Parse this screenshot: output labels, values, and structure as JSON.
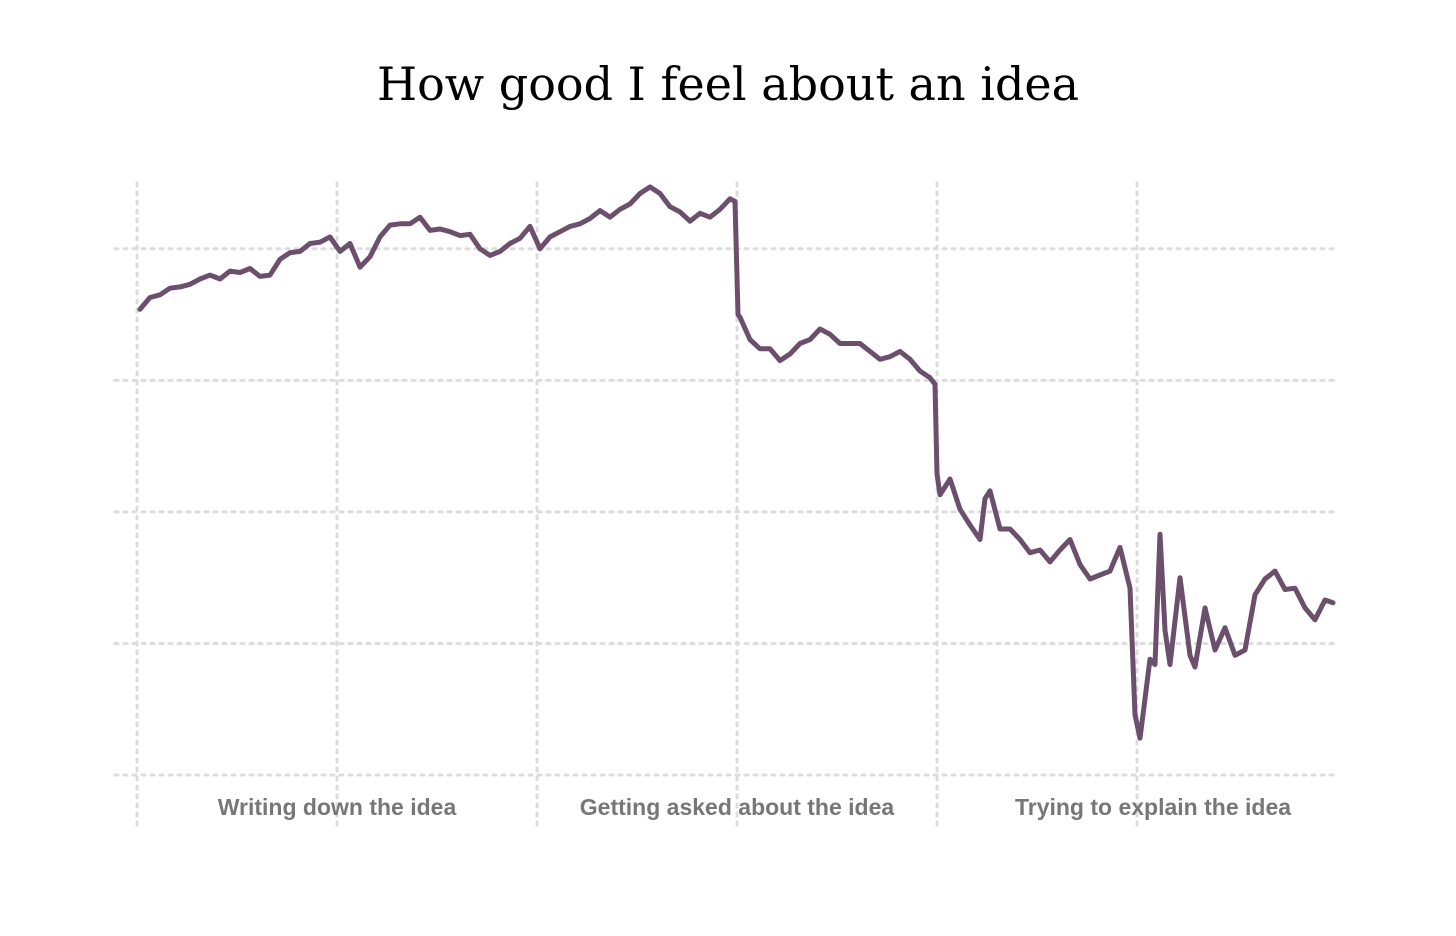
{
  "chart_data": {
    "type": "line",
    "title": "How good I feel about an idea",
    "x_labels": [
      {
        "value": 1,
        "label": "Writing down the idea"
      },
      {
        "value": 3,
        "label": "Getting asked about the idea"
      },
      {
        "value": 5.08,
        "label": "Trying to explain the idea"
      }
    ],
    "x": [
      0.015,
      0.065,
      0.115,
      0.165,
      0.215,
      0.265,
      0.315,
      0.365,
      0.415,
      0.465,
      0.515,
      0.565,
      0.615,
      0.665,
      0.715,
      0.765,
      0.815,
      0.865,
      0.915,
      0.965,
      1.015,
      1.065,
      1.115,
      1.165,
      1.215,
      1.265,
      1.315,
      1.365,
      1.415,
      1.465,
      1.515,
      1.565,
      1.615,
      1.665,
      1.715,
      1.765,
      1.815,
      1.865,
      1.915,
      1.965,
      2.015,
      2.065,
      2.115,
      2.165,
      2.215,
      2.265,
      2.315,
      2.365,
      2.415,
      2.465,
      2.515,
      2.565,
      2.615,
      2.665,
      2.715,
      2.765,
      2.815,
      2.865,
      2.915,
      2.965,
      2.99,
      3.005,
      3.015,
      3.065,
      3.115,
      3.165,
      3.215,
      3.265,
      3.315,
      3.365,
      3.415,
      3.465,
      3.515,
      3.565,
      3.615,
      3.665,
      3.715,
      3.765,
      3.815,
      3.865,
      3.915,
      3.965,
      3.99,
      4.0,
      4.015,
      4.065,
      4.115,
      4.165,
      4.215,
      4.24,
      4.265,
      4.315,
      4.365,
      4.415,
      4.465,
      4.515,
      4.565,
      4.615,
      4.665,
      4.715,
      4.765,
      4.815,
      4.865,
      4.915,
      4.965,
      4.99,
      5.015,
      5.065,
      5.09,
      5.115,
      5.14,
      5.165,
      5.215,
      5.265,
      5.29,
      5.34,
      5.39,
      5.44,
      5.49,
      5.54,
      5.59,
      5.64,
      5.69,
      5.74,
      5.79,
      5.84,
      5.89,
      5.94,
      5.98
    ],
    "series": [
      {
        "color": "#6b4f6c",
        "values": [
          3.54,
          3.63,
          3.65,
          3.7,
          3.71,
          3.73,
          3.77,
          3.8,
          3.77,
          3.83,
          3.82,
          3.85,
          3.79,
          3.8,
          3.92,
          3.97,
          3.98,
          4.04,
          4.05,
          4.09,
          3.98,
          4.04,
          3.86,
          3.94,
          4.09,
          4.18,
          4.19,
          4.19,
          4.24,
          4.14,
          4.15,
          4.13,
          4.1,
          4.11,
          4.0,
          3.95,
          3.98,
          4.04,
          4.08,
          4.17,
          4.0,
          4.09,
          4.13,
          4.17,
          4.19,
          4.23,
          4.29,
          4.24,
          4.3,
          4.34,
          4.42,
          4.47,
          4.42,
          4.32,
          4.28,
          4.21,
          4.27,
          4.24,
          4.3,
          4.38,
          4.36,
          3.5,
          3.48,
          3.31,
          3.24,
          3.24,
          3.15,
          3.2,
          3.28,
          3.31,
          3.39,
          3.35,
          3.28,
          3.28,
          3.28,
          3.22,
          3.16,
          3.18,
          3.22,
          3.16,
          3.07,
          3.02,
          2.97,
          2.29,
          2.13,
          2.25,
          2.02,
          1.9,
          1.79,
          2.1,
          2.16,
          1.87,
          1.87,
          1.79,
          1.69,
          1.71,
          1.62,
          1.71,
          1.79,
          1.6,
          1.49,
          1.52,
          1.55,
          1.73,
          1.42,
          0.46,
          0.28,
          0.88,
          0.84,
          1.83,
          1.1,
          0.84,
          1.5,
          0.91,
          0.82,
          1.27,
          0.95,
          1.12,
          0.91,
          0.95,
          1.37,
          1.49,
          1.55,
          1.41,
          1.42,
          1.27,
          1.18,
          1.33,
          1.31
        ]
      }
    ],
    "xlim": [
      0,
      5.98
    ],
    "xticks": [
      0,
      1,
      2,
      3,
      4,
      5
    ],
    "ylim": [
      0,
      4.5
    ],
    "yticks": [
      0,
      1,
      2,
      3,
      4
    ],
    "grid": true
  }
}
